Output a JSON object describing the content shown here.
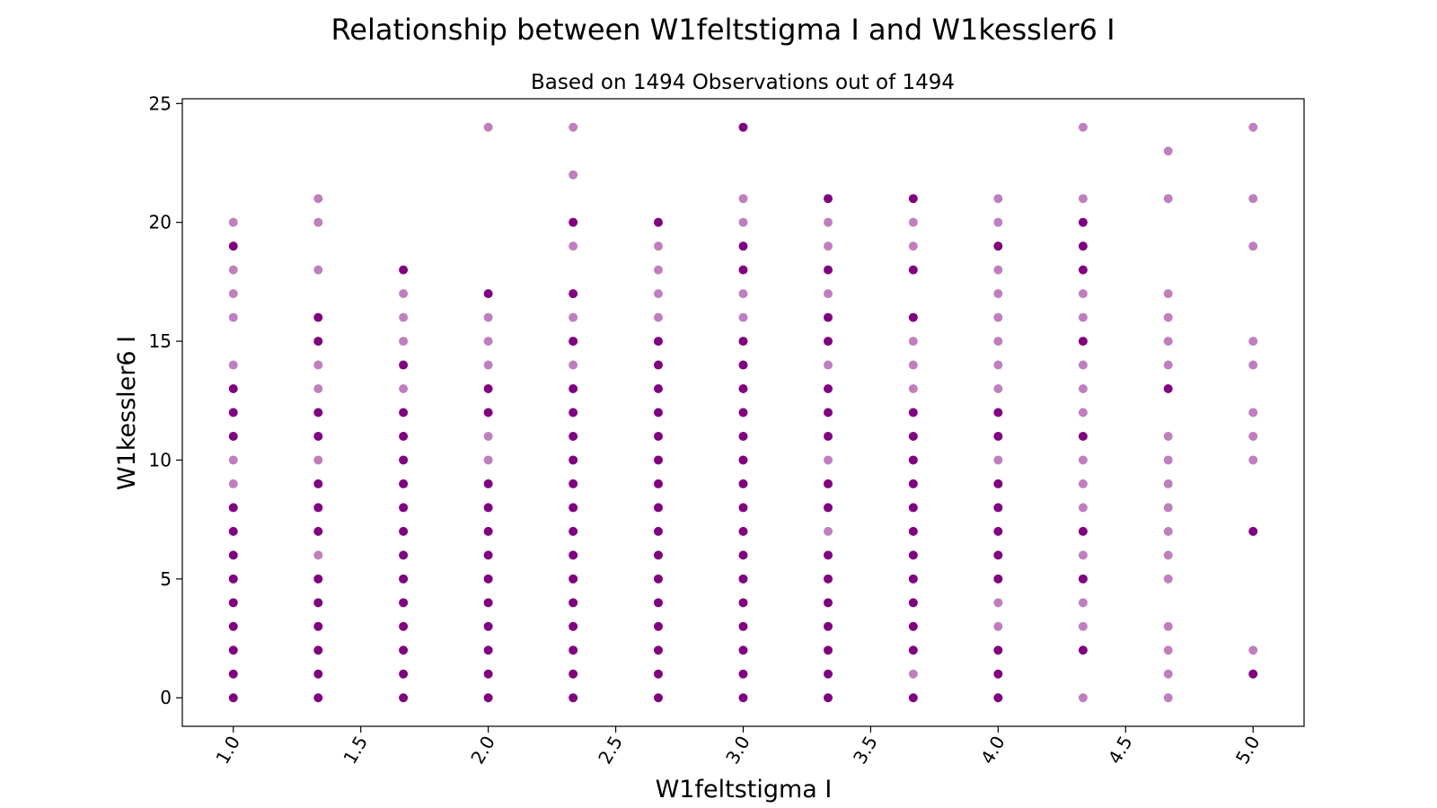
{
  "chart_data": {
    "type": "scatter",
    "title": "Relationship between W1feltstigma I and W1kessler6 I",
    "subtitle": "Based on 1494 Observations out of 1494",
    "xlabel": "W1feltstigma I",
    "ylabel": "W1kessler6 I",
    "xlim": [
      0.8,
      5.2
    ],
    "ylim": [
      -1.2,
      25.2
    ],
    "xticks": [
      "1.0",
      "1.5",
      "2.0",
      "2.5",
      "3.0",
      "3.5",
      "4.0",
      "4.5",
      "5.0"
    ],
    "yticks": [
      "0",
      "5",
      "10",
      "15",
      "20",
      "25"
    ],
    "xtick_rotation": -60,
    "grid": false,
    "point_color": "#800080",
    "point_alpha": 0.5,
    "columns": [
      {
        "x": 1.0,
        "y": [
          0,
          1,
          2,
          3,
          4,
          5,
          6,
          7,
          8,
          9,
          10,
          11,
          12,
          13,
          14,
          16,
          17,
          18,
          19,
          20
        ]
      },
      {
        "x": 1.333,
        "y": [
          0,
          1,
          2,
          3,
          4,
          5,
          6,
          7,
          8,
          9,
          10,
          11,
          12,
          13,
          14,
          15,
          16,
          18,
          20,
          21
        ]
      },
      {
        "x": 1.667,
        "y": [
          0,
          1,
          2,
          3,
          4,
          5,
          6,
          7,
          8,
          9,
          10,
          11,
          12,
          13,
          14,
          15,
          16,
          17,
          18
        ]
      },
      {
        "x": 2.0,
        "y": [
          0,
          1,
          2,
          3,
          4,
          5,
          6,
          7,
          8,
          9,
          10,
          11,
          12,
          13,
          14,
          15,
          16,
          17,
          24
        ]
      },
      {
        "x": 2.333,
        "y": [
          0,
          1,
          2,
          3,
          4,
          5,
          6,
          7,
          8,
          9,
          10,
          11,
          12,
          13,
          14,
          15,
          16,
          17,
          19,
          20,
          22,
          24
        ]
      },
      {
        "x": 2.667,
        "y": [
          0,
          1,
          2,
          3,
          4,
          5,
          6,
          7,
          8,
          9,
          10,
          11,
          12,
          13,
          14,
          15,
          16,
          17,
          18,
          19,
          20
        ]
      },
      {
        "x": 3.0,
        "y": [
          0,
          1,
          2,
          3,
          4,
          5,
          6,
          7,
          8,
          9,
          10,
          11,
          12,
          13,
          14,
          15,
          16,
          17,
          18,
          19,
          20,
          21,
          24
        ]
      },
      {
        "x": 3.333,
        "y": [
          0,
          1,
          2,
          3,
          4,
          5,
          6,
          7,
          8,
          9,
          10,
          11,
          12,
          13,
          14,
          15,
          16,
          17,
          18,
          19,
          20,
          21
        ]
      },
      {
        "x": 3.667,
        "y": [
          0,
          1,
          2,
          3,
          4,
          5,
          6,
          7,
          8,
          9,
          10,
          11,
          12,
          13,
          14,
          15,
          16,
          18,
          19,
          20,
          21
        ]
      },
      {
        "x": 4.0,
        "y": [
          0,
          1,
          2,
          3,
          4,
          5,
          6,
          7,
          8,
          9,
          10,
          11,
          12,
          13,
          14,
          15,
          16,
          17,
          18,
          19,
          20,
          21
        ]
      },
      {
        "x": 4.333,
        "y": [
          0,
          2,
          3,
          4,
          5,
          6,
          7,
          8,
          9,
          10,
          11,
          12,
          13,
          14,
          15,
          16,
          17,
          18,
          19,
          20,
          21,
          24
        ]
      },
      {
        "x": 4.667,
        "y": [
          0,
          1,
          2,
          3,
          5,
          6,
          7,
          8,
          9,
          10,
          11,
          13,
          14,
          15,
          16,
          17,
          21,
          23
        ]
      },
      {
        "x": 5.0,
        "y": [
          1,
          2,
          7,
          10,
          11,
          12,
          14,
          15,
          19,
          21,
          24
        ]
      }
    ],
    "dark_points": [
      [
        1.0,
        [
          0,
          1,
          2,
          3,
          4,
          5,
          6,
          7,
          8,
          11,
          12,
          13,
          19
        ]
      ],
      [
        1.333,
        [
          0,
          1,
          2,
          3,
          4,
          5,
          7,
          8,
          9,
          11,
          12,
          15,
          16
        ]
      ],
      [
        1.667,
        [
          0,
          1,
          2,
          3,
          4,
          5,
          6,
          7,
          8,
          9,
          10,
          11,
          12,
          14,
          18
        ]
      ],
      [
        2.0,
        [
          0,
          1,
          2,
          3,
          4,
          5,
          6,
          7,
          8,
          9,
          12,
          13,
          17
        ]
      ],
      [
        2.333,
        [
          0,
          1,
          2,
          3,
          4,
          5,
          6,
          7,
          8,
          9,
          10,
          11,
          12,
          13,
          15,
          17,
          20
        ]
      ],
      [
        2.667,
        [
          0,
          1,
          2,
          3,
          4,
          5,
          6,
          7,
          8,
          9,
          10,
          11,
          12,
          13,
          14,
          15,
          20
        ]
      ],
      [
        3.0,
        [
          0,
          1,
          2,
          3,
          4,
          5,
          6,
          7,
          8,
          9,
          10,
          11,
          12,
          13,
          14,
          15,
          18,
          19,
          24
        ]
      ],
      [
        3.333,
        [
          0,
          1,
          2,
          3,
          4,
          5,
          6,
          8,
          9,
          11,
          12,
          13,
          15,
          16,
          18,
          21
        ]
      ],
      [
        3.667,
        [
          0,
          2,
          3,
          4,
          5,
          6,
          7,
          8,
          9,
          10,
          11,
          12,
          16,
          18,
          21
        ]
      ],
      [
        4.0,
        [
          0,
          1,
          2,
          5,
          6,
          7,
          8,
          9,
          11,
          12,
          19
        ]
      ],
      [
        4.333,
        [
          2,
          5,
          7,
          11,
          15,
          18,
          19,
          20
        ]
      ],
      [
        4.667,
        [
          13
        ]
      ],
      [
        5.0,
        [
          1,
          7
        ]
      ]
    ]
  }
}
